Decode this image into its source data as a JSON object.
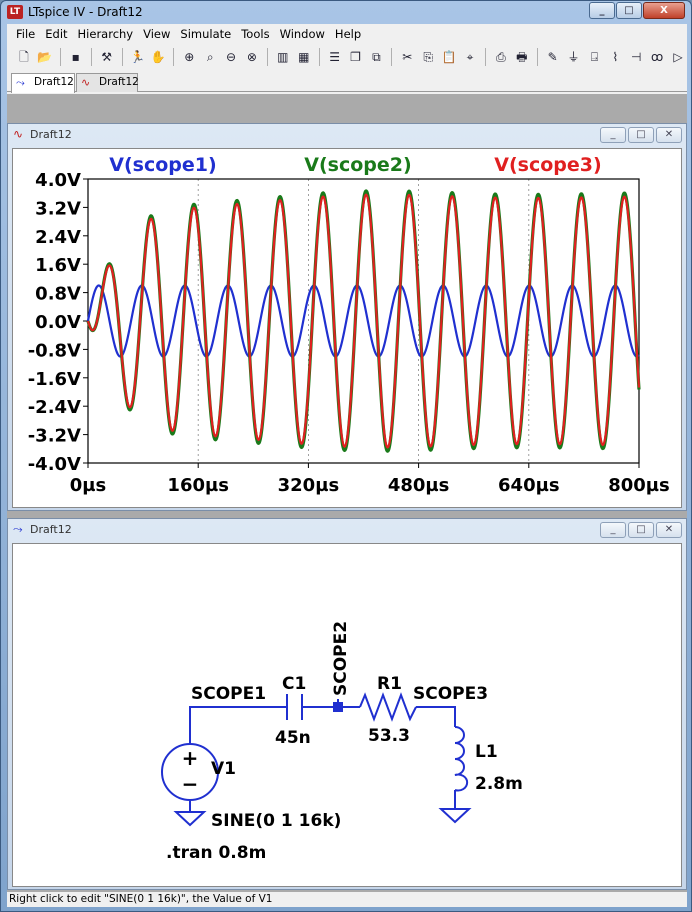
{
  "app": {
    "title": "LTspice IV - Draft12",
    "logo": "LT"
  },
  "window_buttons": {
    "minimize": "_",
    "maximize": "□",
    "close": "X"
  },
  "menu": [
    "File",
    "Edit",
    "Hierarchy",
    "View",
    "Simulate",
    "Tools",
    "Window",
    "Help"
  ],
  "toolbar_icons": [
    "new-schematic-icon",
    "open-icon",
    "save-icon",
    "control-panel-icon",
    "run-icon",
    "halt-icon",
    "zoom-in-icon",
    "zoom-back-icon",
    "zoom-out-icon",
    "zoom-cancel-icon",
    "autorange-icon",
    "grid-icon",
    "tile-horizontal-icon",
    "cascade-icon",
    "tile-vertical-icon",
    "cut-icon",
    "copy-icon",
    "paste-icon",
    "find-icon",
    "print-preview-icon",
    "print-icon",
    "wire-icon",
    "ground-icon",
    "label-icon",
    "resistor-icon",
    "capacitor-icon",
    "inductor-icon",
    "diode-icon"
  ],
  "tabs": [
    {
      "label": "Draft12",
      "icon": "schematic-tab-icon"
    },
    {
      "label": "Draft12",
      "icon": "waveform-tab-icon"
    }
  ],
  "plot_window": {
    "title": "Draft12",
    "traces": [
      {
        "name": "V(scope1)",
        "color": "#2030d0"
      },
      {
        "name": "V(scope2)",
        "color": "#1a7a1a"
      },
      {
        "name": "V(scope3)",
        "color": "#e02020"
      }
    ],
    "y_ticks": [
      "4.0V",
      "3.2V",
      "2.4V",
      "1.6V",
      "0.8V",
      "0.0V",
      "-0.8V",
      "-1.6V",
      "-2.4V",
      "-3.2V",
      "-4.0V"
    ],
    "x_ticks": [
      "0µs",
      "160µs",
      "320µs",
      "480µs",
      "640µs",
      "800µs"
    ]
  },
  "chart_data": {
    "type": "line",
    "x_range": [
      0,
      800
    ],
    "y_range": [
      -4.0,
      4.0
    ],
    "x_unit": "µs",
    "y_unit": "V",
    "grid": true,
    "series": [
      {
        "name": "V(scope1)",
        "color": "#2030d0",
        "kind": "sine",
        "amplitude": 1.0,
        "frequency_khz": 16
      },
      {
        "name": "V(scope2)",
        "color": "#1a7a1a",
        "kind": "resonant-ringup",
        "steady_amplitude": 3.6,
        "frequency_khz": 16
      },
      {
        "name": "V(scope3)",
        "color": "#e02020",
        "kind": "resonant-ringup",
        "steady_amplitude": 3.55,
        "frequency_khz": 16
      }
    ],
    "peaks_approx": [
      {
        "t": 75,
        "v": 2.5
      },
      {
        "t": 130,
        "v": 3.5
      },
      {
        "t": 200,
        "v": 3.8
      }
    ]
  },
  "schematic_window": {
    "title": "Draft12",
    "labels": {
      "scope1": "SCOPE1",
      "scope2": "SCOPE2",
      "scope3": "SCOPE3",
      "c1_name": "C1",
      "c1_value": "45n",
      "r1_name": "R1",
      "r1_value": "53.3",
      "l1_name": "L1",
      "l1_value": "2.8m",
      "v1_name": "V1",
      "v1_value": "SINE(0 1 16k)",
      "directive": ".tran 0.8m",
      "plus": "+",
      "minus": "−"
    }
  },
  "status": "Right click to edit \"SINE(0 1 16k)\", the Value of V1"
}
